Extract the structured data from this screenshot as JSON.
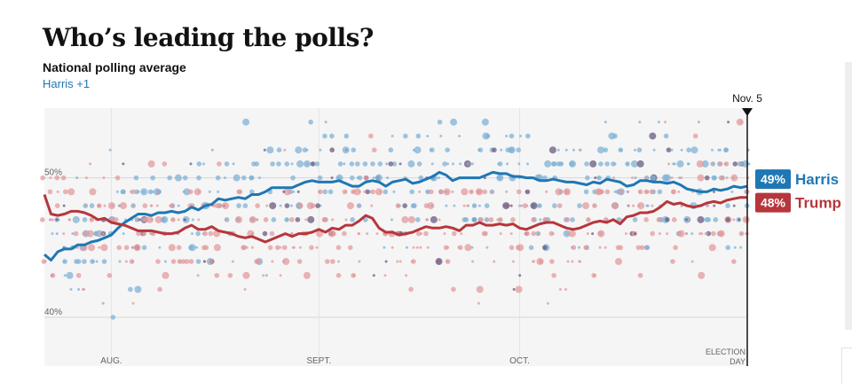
{
  "header": {
    "title": "Who’s leading the polls?",
    "subtitle": "National polling average",
    "lead_label": "Harris +1"
  },
  "colors": {
    "harris": "#1f77b4",
    "trump": "#b6363c",
    "harris_dot": "#7fb2d6",
    "trump_dot": "#e39a9c",
    "overlap_dot": "#6a5a80",
    "plot_bg": "#f5f5f5",
    "grid": "#d8d8d8",
    "text_muted": "#666666"
  },
  "chart_data": {
    "type": "scatter",
    "x_label_unit": "days",
    "xlim": [
      0,
      105
    ],
    "ylim": [
      36.5,
      55
    ],
    "grid_lines": [
      40,
      50
    ],
    "y_ticks": [
      {
        "value": 50,
        "label": "50%"
      },
      {
        "value": 40,
        "label": "40%"
      }
    ],
    "x_ticks": [
      {
        "value": 10,
        "label": "AUG."
      },
      {
        "value": 41,
        "label": "SEPT."
      },
      {
        "value": 71,
        "label": "OCT."
      }
    ],
    "election_marker": {
      "value": 105,
      "label": "Nov. 5",
      "bottom_label_line1": "ELECTION",
      "bottom_label_line2": "DAY"
    },
    "series": [
      {
        "name": "Harris",
        "final_value_label": "49%",
        "x": [
          0,
          1,
          2,
          3,
          4,
          5,
          6,
          7,
          8,
          9,
          10,
          11,
          12,
          13,
          14,
          15,
          16,
          17,
          18,
          19,
          20,
          21,
          22,
          23,
          24,
          25,
          26,
          27,
          28,
          29,
          30,
          31,
          32,
          33,
          34,
          35,
          36,
          37,
          38,
          39,
          40,
          41,
          42,
          43,
          44,
          45,
          46,
          47,
          48,
          49,
          50,
          51,
          52,
          53,
          54,
          55,
          56,
          57,
          58,
          59,
          60,
          61,
          62,
          63,
          64,
          65,
          66,
          67,
          68,
          69,
          70,
          71,
          72,
          73,
          74,
          75,
          76,
          77,
          78,
          79,
          80,
          81,
          82,
          83,
          84,
          85,
          86,
          87,
          88,
          89,
          90,
          91,
          92,
          93,
          94,
          95,
          96,
          97,
          98,
          99,
          100,
          101,
          102,
          103,
          104,
          105
        ],
        "values": [
          44.5,
          44.1,
          44.7,
          44.9,
          44.9,
          45.2,
          45.2,
          45.4,
          45.5,
          45.7,
          45.9,
          46.4,
          46.8,
          47.1,
          47.4,
          47.4,
          47.3,
          47.5,
          47.5,
          47.6,
          47.5,
          47.6,
          47.9,
          47.7,
          48,
          48.1,
          48.5,
          48.4,
          48.5,
          48.6,
          48.5,
          48.8,
          48.8,
          49,
          49.3,
          49.3,
          49.3,
          49.3,
          49.5,
          49.7,
          49.8,
          49.7,
          49.7,
          49.7,
          49.8,
          49.6,
          49.4,
          49.4,
          49.7,
          49.8,
          49.7,
          49.4,
          49.7,
          49.8,
          49.9,
          49.6,
          49.7,
          49.9,
          50.1,
          50.4,
          50.2,
          49.8,
          50,
          50,
          50,
          50,
          50.2,
          50.4,
          50.3,
          50.3,
          50.1,
          50.1,
          50,
          50,
          49.8,
          49.8,
          49.9,
          49.8,
          49.7,
          49.7,
          49.6,
          49.5,
          49.7,
          49.6,
          49.9,
          49.8,
          49.7,
          49.4,
          49.5,
          49.8,
          49.8,
          49.7,
          49.7,
          49.6,
          49.7,
          49.5,
          49.2,
          49.1,
          49,
          49,
          49.2,
          49.1,
          49.2,
          49.4,
          49.3,
          49.4
        ]
      },
      {
        "name": "Trump",
        "final_value_label": "48%",
        "x": [
          0,
          1,
          2,
          3,
          4,
          5,
          6,
          7,
          8,
          9,
          10,
          11,
          12,
          13,
          14,
          15,
          16,
          17,
          18,
          19,
          20,
          21,
          22,
          23,
          24,
          25,
          26,
          27,
          28,
          29,
          30,
          31,
          32,
          33,
          34,
          35,
          36,
          37,
          38,
          39,
          40,
          41,
          42,
          43,
          44,
          45,
          46,
          47,
          48,
          49,
          50,
          51,
          52,
          53,
          54,
          55,
          56,
          57,
          58,
          59,
          60,
          61,
          62,
          63,
          64,
          65,
          66,
          67,
          68,
          69,
          70,
          71,
          72,
          73,
          74,
          75,
          76,
          77,
          78,
          79,
          80,
          81,
          82,
          83,
          84,
          85,
          86,
          87,
          88,
          89,
          90,
          91,
          92,
          93,
          94,
          95,
          96,
          97,
          98,
          99,
          100,
          101,
          102,
          103,
          104,
          105
        ],
        "values": [
          48.8,
          47.4,
          47.3,
          47.4,
          47.6,
          47.6,
          47.5,
          47.3,
          47,
          47.1,
          46.8,
          46.7,
          46.6,
          46.4,
          46.2,
          46.2,
          46.2,
          46.1,
          46,
          46,
          46.1,
          46.4,
          46.6,
          46.3,
          46.3,
          46.5,
          46.2,
          46.1,
          46,
          45.8,
          45.7,
          45.8,
          45.6,
          45.4,
          45.6,
          45.8,
          46,
          45.8,
          46,
          46,
          46.1,
          46.3,
          46.1,
          46.4,
          46.3,
          46.6,
          46.6,
          46.9,
          47.3,
          47.1,
          46.4,
          46.1,
          46.1,
          45.9,
          46,
          46.1,
          46.3,
          46.5,
          46.4,
          46.4,
          46.5,
          46.4,
          46.2,
          46.6,
          46.6,
          46.8,
          46.6,
          46.6,
          46.7,
          46.6,
          46.7,
          46.4,
          46.3,
          46.5,
          46.7,
          46.8,
          46.8,
          46.6,
          46.4,
          46.3,
          46.4,
          46.6,
          46.8,
          46.9,
          46.8,
          47,
          46.7,
          47.2,
          47.3,
          47.5,
          47.5,
          47.6,
          47.9,
          48.3,
          48.1,
          48.2,
          48,
          47.9,
          48,
          48.2,
          48.3,
          48.2,
          48.4,
          48.5,
          48.6,
          48.6
        ]
      }
    ]
  }
}
